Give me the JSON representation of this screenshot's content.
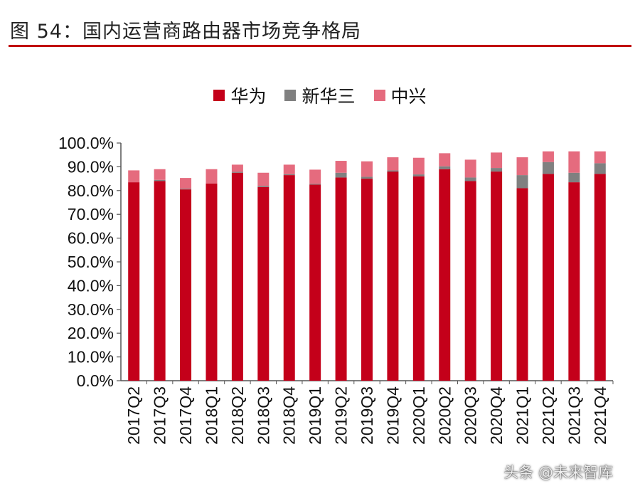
{
  "figure_title": "图 54：国内运营商路由器市场竞争格局",
  "watermark": "头条 @未来智库",
  "colors": {
    "huawei": "#c4001a",
    "h3c": "#808080",
    "zte": "#e56b7e",
    "rule": "#c00000"
  },
  "chart_data": {
    "type": "bar",
    "stacked": true,
    "title": "",
    "xlabel": "",
    "ylabel": "",
    "ylim": [
      0,
      100
    ],
    "yticks": [
      "0.0%",
      "10.0%",
      "20.0%",
      "30.0%",
      "40.0%",
      "50.0%",
      "60.0%",
      "70.0%",
      "80.0%",
      "90.0%",
      "100.0%"
    ],
    "legend_position": "top",
    "grid": false,
    "categories": [
      "2017Q2",
      "2017Q3",
      "2017Q4",
      "2018Q1",
      "2018Q2",
      "2018Q3",
      "2018Q4",
      "2019Q1",
      "2019Q2",
      "2019Q3",
      "2019Q4",
      "2020Q1",
      "2020Q2",
      "2020Q3",
      "2020Q4",
      "2021Q1",
      "2021Q2",
      "2021Q3",
      "2021Q4"
    ],
    "series": [
      {
        "name": "华为",
        "color": "#c4001a",
        "values": [
          83.5,
          84.0,
          80.5,
          83.0,
          87.5,
          81.5,
          86.5,
          82.5,
          85.5,
          85.0,
          88.0,
          86.0,
          89.0,
          84.0,
          88.0,
          81.0,
          87.0,
          83.5,
          87.0
        ]
      },
      {
        "name": "新华三",
        "color": "#808080",
        "values": [
          0.0,
          0.5,
          0.3,
          0.0,
          0.4,
          0.5,
          0.4,
          0.3,
          2.0,
          0.8,
          0.5,
          0.8,
          1.2,
          1.5,
          1.5,
          5.5,
          5.0,
          4.0,
          4.5
        ]
      },
      {
        "name": "中兴",
        "color": "#e56b7e",
        "values": [
          5.0,
          4.5,
          4.5,
          6.0,
          3.0,
          5.5,
          4.0,
          6.0,
          5.0,
          6.5,
          5.5,
          7.0,
          5.5,
          7.5,
          6.5,
          7.5,
          4.5,
          9.0,
          5.0
        ]
      }
    ]
  }
}
